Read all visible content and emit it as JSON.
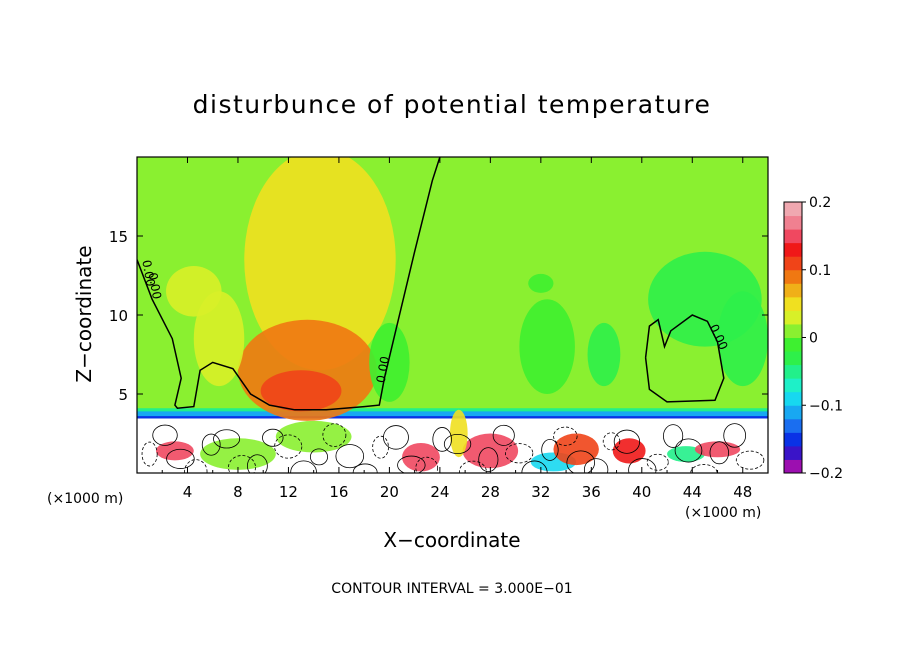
{
  "chart_data": {
    "type": "heatmap",
    "title": "disturbunce of potential temperature",
    "xlabel": "X−coordinate",
    "ylabel": "Z−coordinate",
    "x_unit": "(×1000 m)",
    "x_unit_right": "(×1000 m)",
    "xlim": [
      0,
      50
    ],
    "ylim": [
      0,
      20
    ],
    "x_ticks": [
      4,
      8,
      12,
      16,
      20,
      24,
      28,
      32,
      36,
      40,
      44,
      48
    ],
    "y_ticks": [
      5,
      10,
      15
    ],
    "colorbar": {
      "range": [
        -0.2,
        0.2
      ],
      "tick_values": [
        0.2,
        0.1,
        0,
        -0.1,
        -0.2
      ],
      "tick_labels": [
        "0.2",
        "0.1",
        "0",
        "−0.1",
        "−0.2"
      ],
      "colors": [
        "#9c0fb0",
        "#3a14c8",
        "#0a32e6",
        "#1a6ef0",
        "#18a8f2",
        "#17d8f0",
        "#1ef0c8",
        "#22f08a",
        "#2ef04a",
        "#3ef030",
        "#8af030",
        "#d8f028",
        "#f0e020",
        "#f0b018",
        "#f07812",
        "#f04418",
        "#f01818",
        "#f04860",
        "#f08090",
        "#f0a8b0"
      ]
    },
    "contour_label": "0.00",
    "annotation": "CONTOUR INTERVAL = 3.000E−01",
    "blobs": [
      {
        "x": 14.5,
        "z": 13.5,
        "rx": 6,
        "rz": 7,
        "v": 0.05
      },
      {
        "x": 13.5,
        "z": 6.5,
        "rx": 5.5,
        "rz": 3.2,
        "v": 0.08
      },
      {
        "x": 13,
        "z": 5.2,
        "rx": 3.2,
        "rz": 1.3,
        "v": 0.1
      },
      {
        "x": 4.5,
        "z": 11.5,
        "rx": 2.2,
        "rz": 1.6,
        "v": 0.03
      },
      {
        "x": 6.5,
        "z": 8.5,
        "rx": 2,
        "rz": 3,
        "v": 0.03
      },
      {
        "x": 20,
        "z": 7,
        "rx": 1.6,
        "rz": 2.5,
        "v": -0.02
      },
      {
        "x": 32.5,
        "z": 8,
        "rx": 2.2,
        "rz": 3,
        "v": -0.02
      },
      {
        "x": 37,
        "z": 7.5,
        "rx": 1.3,
        "rz": 2,
        "v": -0.03
      },
      {
        "x": 45,
        "z": 11,
        "rx": 4.5,
        "rz": 3,
        "v": -0.025
      },
      {
        "x": 48,
        "z": 8.5,
        "rx": 2,
        "rz": 3,
        "v": -0.03
      },
      {
        "x": 32,
        "z": 12,
        "rx": 1,
        "rz": 0.6,
        "v": -0.02
      },
      {
        "x": 8,
        "z": 1.2,
        "rx": 3,
        "rz": 1,
        "v": 0.02
      },
      {
        "x": 3,
        "z": 1.4,
        "rx": 1.5,
        "rz": 0.6,
        "v": 0.15
      },
      {
        "x": 14,
        "z": 2.3,
        "rx": 3,
        "rz": 1,
        "v": 0.02
      },
      {
        "x": 22.5,
        "z": 1.0,
        "rx": 1.5,
        "rz": 0.9,
        "v": 0.14
      },
      {
        "x": 28,
        "z": 1.4,
        "rx": 2.2,
        "rz": 1.1,
        "v": 0.15
      },
      {
        "x": 33,
        "z": 0.7,
        "rx": 1.8,
        "rz": 0.6,
        "v": -0.09
      },
      {
        "x": 34.8,
        "z": 1.5,
        "rx": 1.8,
        "rz": 1,
        "v": 0.12
      },
      {
        "x": 39,
        "z": 1.4,
        "rx": 1.3,
        "rz": 0.8,
        "v": 0.13
      },
      {
        "x": 43.5,
        "z": 1.2,
        "rx": 1.5,
        "rz": 0.5,
        "v": -0.05
      },
      {
        "x": 46,
        "z": 1.5,
        "rx": 1.8,
        "rz": 0.5,
        "v": 0.15
      },
      {
        "x": 25.5,
        "z": 2.5,
        "rx": 0.7,
        "rz": 1.5,
        "v": 0.05
      }
    ],
    "contours": [
      [
        [
          0,
          13.5
        ],
        [
          1.2,
          11
        ],
        [
          2.8,
          8.5
        ],
        [
          3.5,
          6
        ],
        [
          3,
          4.3
        ],
        [
          3.2,
          4.1
        ],
        [
          4.5,
          4.2
        ],
        [
          5,
          6.5
        ],
        [
          6,
          7
        ],
        [
          7.6,
          6.6
        ],
        [
          9,
          5
        ],
        [
          10.5,
          4.3
        ],
        [
          12.5,
          4
        ],
        [
          15,
          4
        ],
        [
          18,
          4.2
        ],
        [
          19.2,
          4.3
        ],
        [
          19.6,
          6
        ],
        [
          20.5,
          9
        ],
        [
          22,
          14
        ],
        [
          23.4,
          18.5
        ],
        [
          24,
          20
        ]
      ],
      [
        [
          40.3,
          7.3
        ],
        [
          40.6,
          9.3
        ],
        [
          41.3,
          9.7
        ],
        [
          41.8,
          8
        ],
        [
          42.3,
          9
        ],
        [
          44,
          10
        ],
        [
          45.2,
          9.6
        ],
        [
          46,
          8.3
        ],
        [
          46.5,
          6
        ],
        [
          45.8,
          4.6
        ],
        [
          42,
          4.5
        ],
        [
          40.6,
          5.3
        ],
        [
          40.3,
          7.3
        ]
      ]
    ],
    "contour_labels": [
      {
        "x": 0.6,
        "z": 12.6,
        "angle": 80
      },
      {
        "x": 1.1,
        "z": 11.8,
        "angle": 80
      },
      {
        "x": 19.8,
        "z": 6.5,
        "angle": -80
      },
      {
        "x": 45.8,
        "z": 8.5,
        "angle": 65
      }
    ]
  }
}
